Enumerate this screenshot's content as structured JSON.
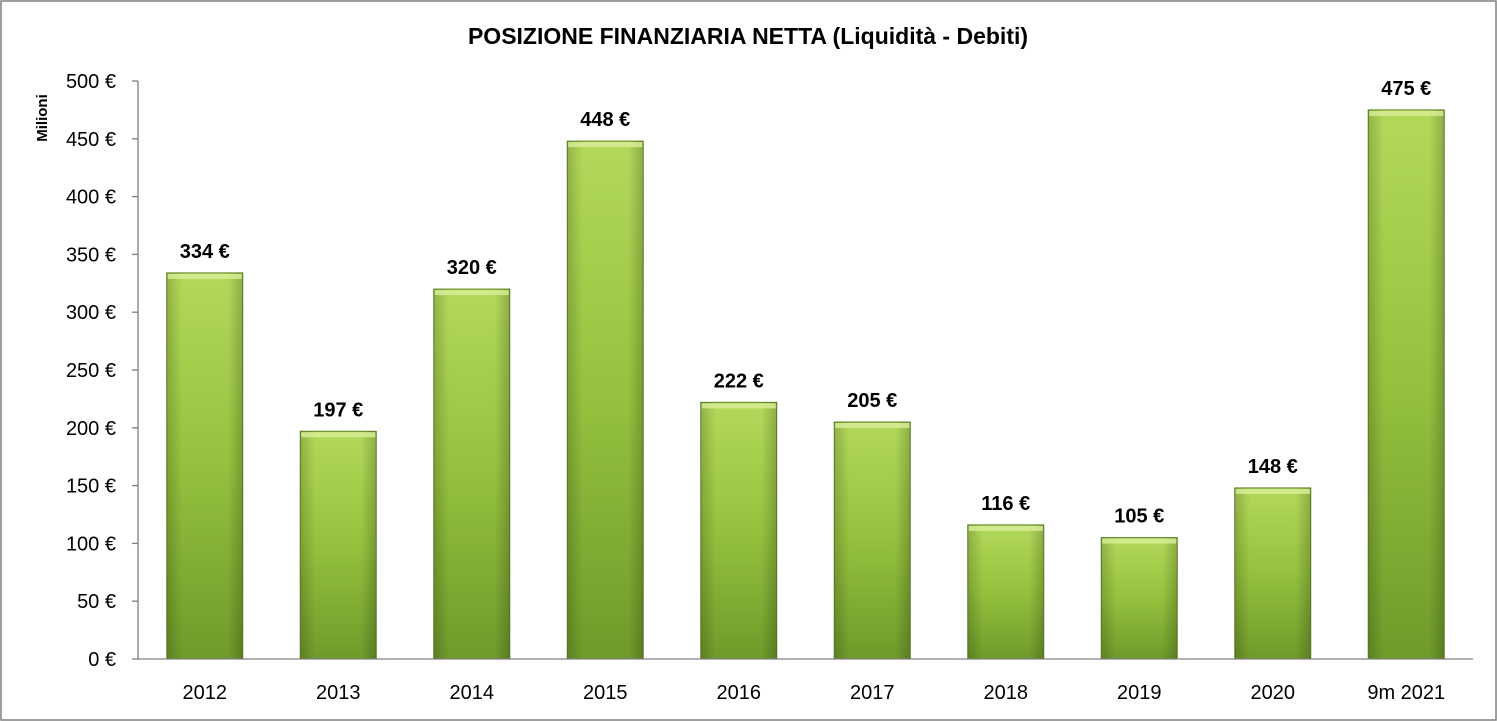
{
  "chart_data": {
    "type": "bar",
    "title": "POSIZIONE FINANZIARIA NETTA (Liquidità - Debiti)",
    "ylabel": "Milioni",
    "xlabel": "",
    "categories": [
      "2012",
      "2013",
      "2014",
      "2015",
      "2016",
      "2017",
      "2018",
      "2019",
      "2020",
      "9m 2021"
    ],
    "values": [
      334,
      197,
      320,
      448,
      222,
      205,
      116,
      105,
      148,
      475
    ],
    "data_labels": [
      "334 €",
      "197 €",
      "320 €",
      "448 €",
      "222 €",
      "205 €",
      "116 €",
      "105 €",
      "148 €",
      "475 €"
    ],
    "ylim": [
      0,
      500
    ],
    "y_ticks": [
      0,
      50,
      100,
      150,
      200,
      250,
      300,
      350,
      400,
      450,
      500
    ],
    "y_tick_labels": [
      "0 €",
      "50 €",
      "100 €",
      "150 €",
      "200 €",
      "250 €",
      "300 €",
      "350 €",
      "400 €",
      "450 €",
      "500 €"
    ],
    "grid": false,
    "legend": "none",
    "colors": {
      "bar_light": "#b3d95a",
      "bar_mid": "#95c13e",
      "bar_dark": "#6f9a2a",
      "bar_edge": "#5e8424",
      "axis": "#808080",
      "border": "#7f7f7f"
    }
  }
}
